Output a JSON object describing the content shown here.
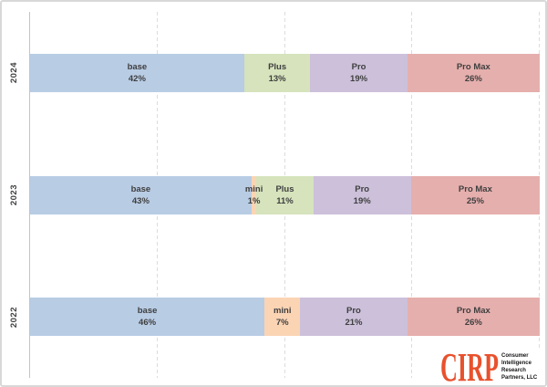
{
  "chart_data": {
    "type": "bar",
    "variant": "stacked-100-horizontal",
    "title": "",
    "categories": [
      "2024",
      "2023",
      "2022"
    ],
    "segment_colors": {
      "base": "#B8CCE4",
      "mini": "#FBD4B4",
      "Plus": "#D6E3BC",
      "Pro": "#CCC0DA",
      "Pro Max": "#E5AFAD"
    },
    "rows": [
      {
        "year": "2024",
        "segments": [
          {
            "label": "base",
            "value": 42
          },
          {
            "label": "Plus",
            "value": 13
          },
          {
            "label": "Pro",
            "value": 19
          },
          {
            "label": "Pro Max",
            "value": 26
          }
        ]
      },
      {
        "year": "2023",
        "segments": [
          {
            "label": "base",
            "value": 43
          },
          {
            "label": "mini",
            "value": 1
          },
          {
            "label": "Plus",
            "value": 11
          },
          {
            "label": "Pro",
            "value": 19
          },
          {
            "label": "Pro Max",
            "value": 25
          }
        ]
      },
      {
        "year": "2022",
        "segments": [
          {
            "label": "base",
            "value": 46
          },
          {
            "label": "mini",
            "value": 7
          },
          {
            "label": "Pro",
            "value": 21
          },
          {
            "label": "Pro Max",
            "value": 26
          }
        ]
      }
    ],
    "value_suffix": "%",
    "xlim": [
      0,
      100
    ],
    "gridlines_pct": [
      25,
      50,
      75,
      100
    ],
    "grid": "dashed-vertical",
    "legend": "none",
    "colors": {
      "grid": "#dcdcdc",
      "axis": "#c4c4c4",
      "label_text": "#3f3f3f"
    }
  },
  "branding": {
    "logo_text": "CIRP",
    "logo_color": "#E8512D",
    "tagline_lines": [
      "Consumer",
      "Intelligence",
      "Research",
      "Partners, LLC"
    ]
  }
}
